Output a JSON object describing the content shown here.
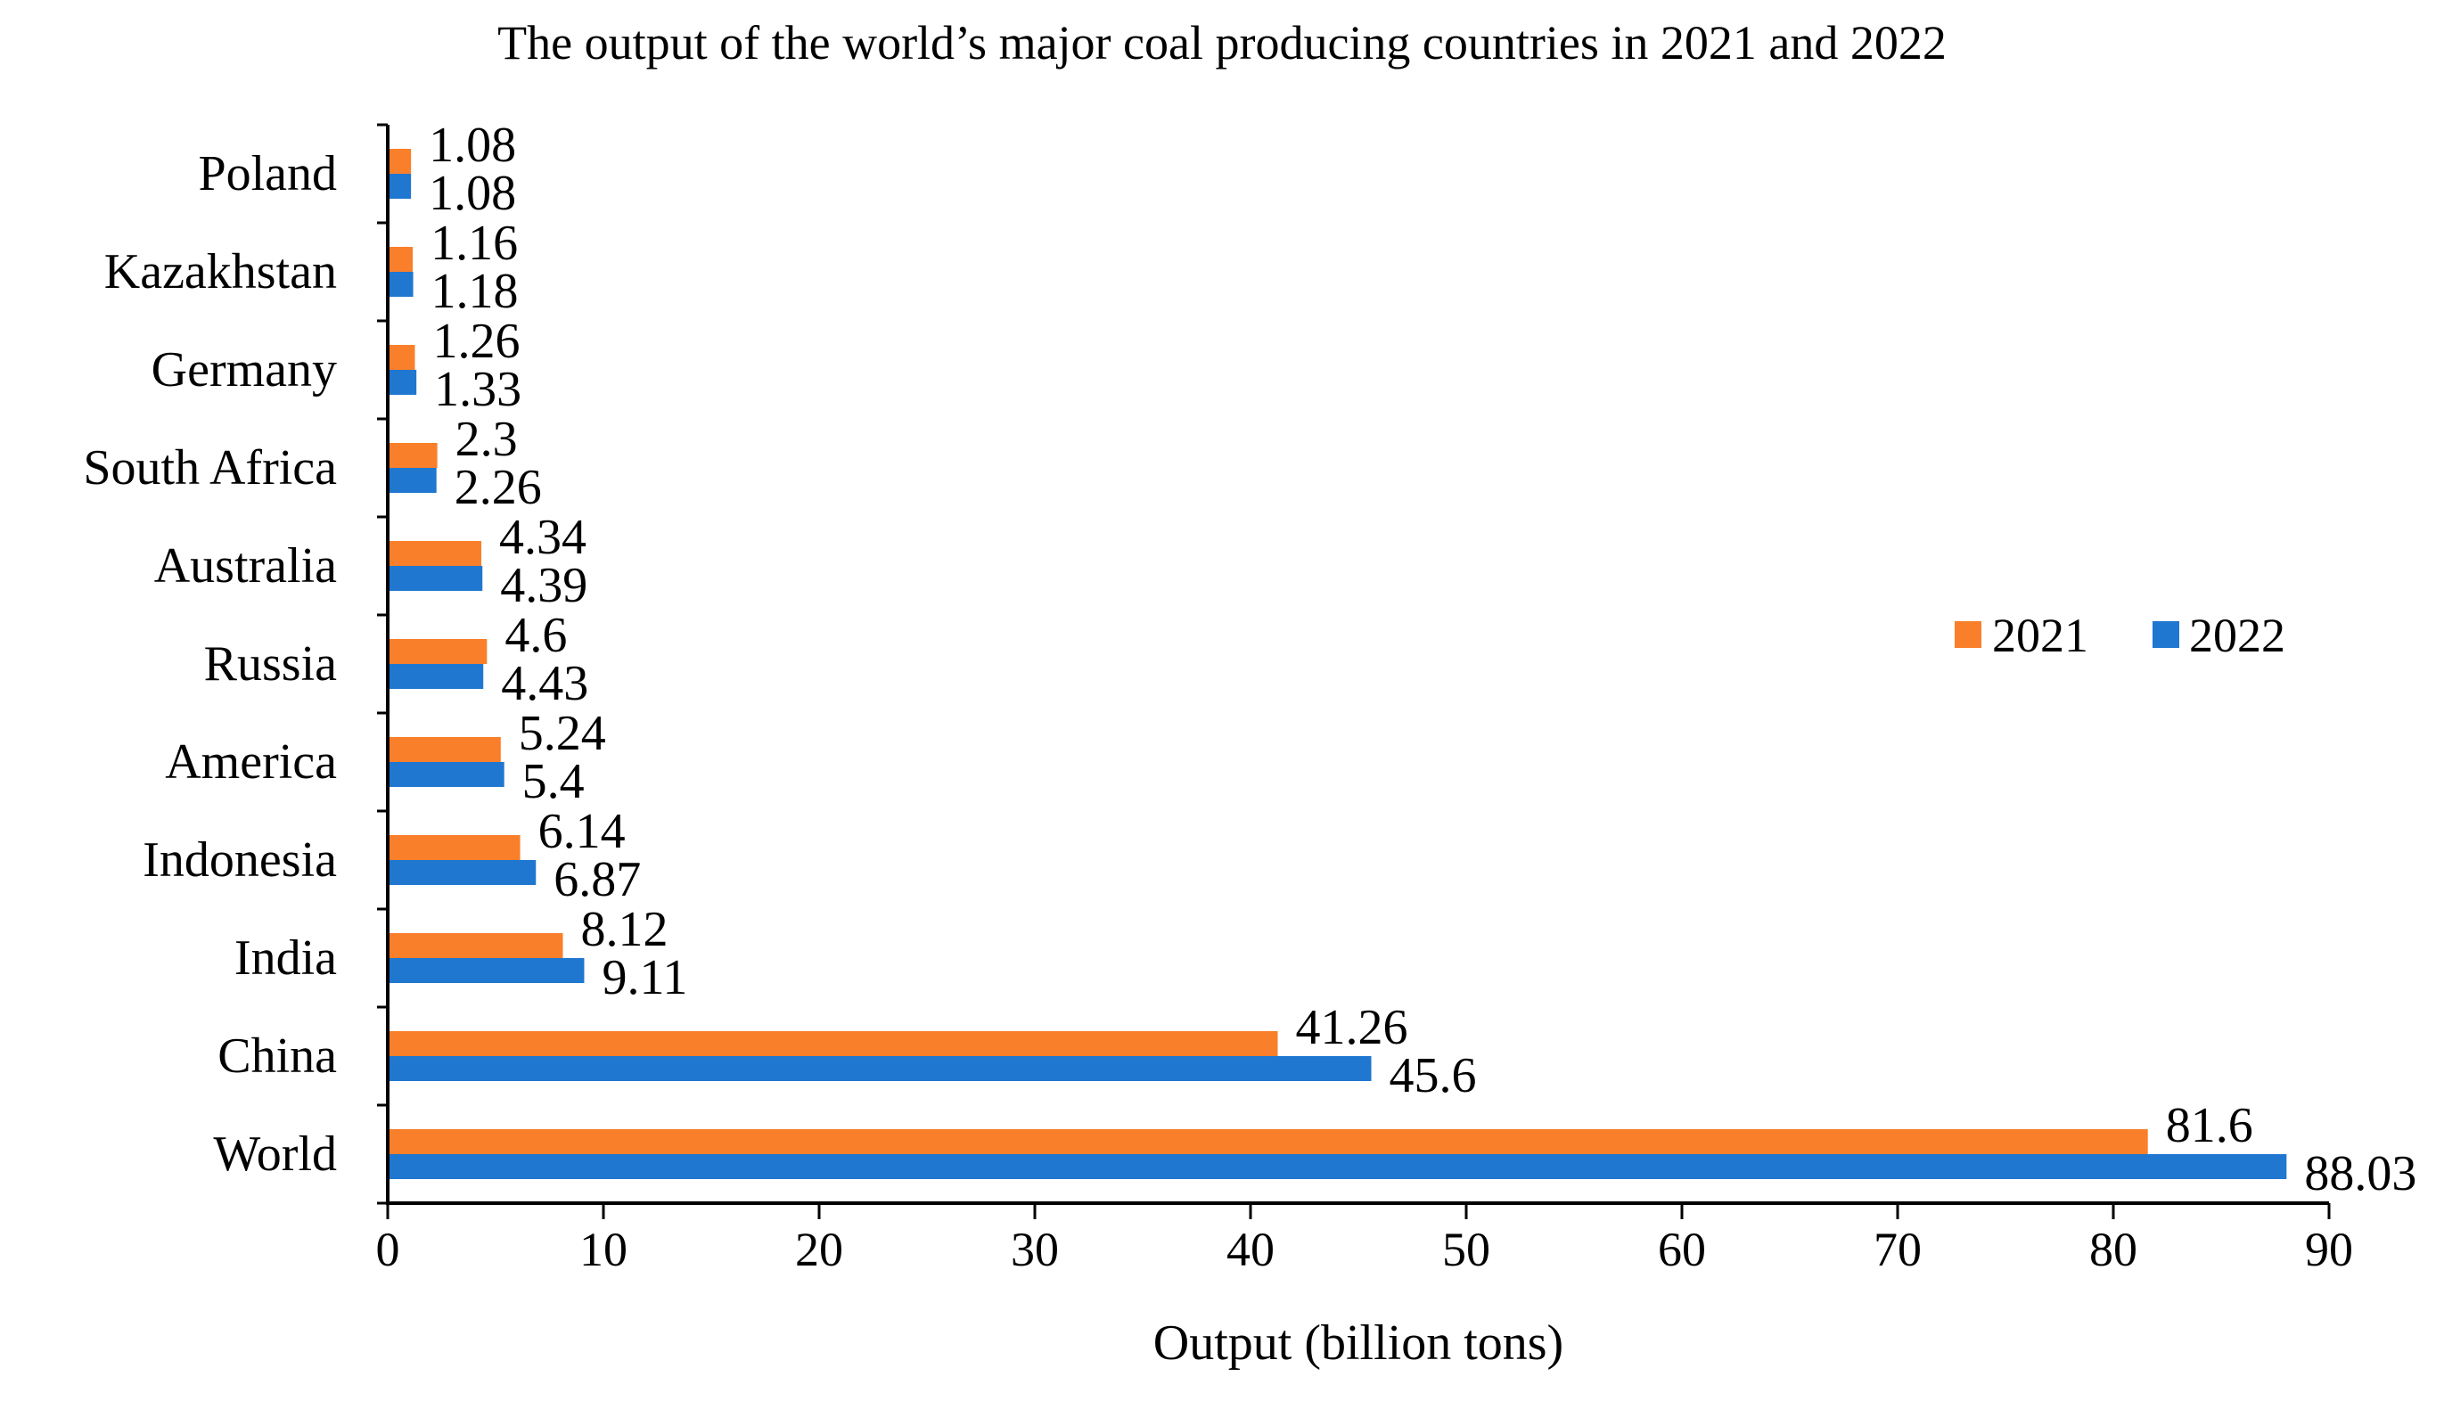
{
  "chart_data": {
    "type": "bar",
    "orientation": "horizontal",
    "title": "The output of the world’s major coal producing countries in 2021 and 2022",
    "xlabel": "Output (billion tons)",
    "ylabel": "",
    "xlim": [
      0,
      90
    ],
    "xticks": [
      0,
      10,
      20,
      30,
      40,
      50,
      60,
      70,
      80,
      90
    ],
    "grid": false,
    "legend_position": "right",
    "categories": [
      "Poland",
      "Kazakhstan",
      "Germany",
      "South Africa",
      "Australia",
      "Russia",
      "America",
      "Indonesia",
      "India",
      "China",
      "World"
    ],
    "series": [
      {
        "name": "2021",
        "color": "#fa7f2a",
        "values": [
          1.08,
          1.16,
          1.26,
          2.3,
          4.34,
          4.6,
          5.24,
          6.14,
          8.12,
          41.26,
          81.6
        ],
        "labels": [
          "1.08",
          "1.16",
          "1.26",
          "2.3",
          "4.34",
          "4.6",
          "5.24",
          "6.14",
          "8.12",
          "41.26",
          "81.6"
        ]
      },
      {
        "name": "2022",
        "color": "#1f77d0",
        "values": [
          1.08,
          1.18,
          1.33,
          2.26,
          4.39,
          4.43,
          5.4,
          6.87,
          9.11,
          45.6,
          88.03
        ],
        "labels": [
          "1.08",
          "1.18",
          "1.33",
          "2.26",
          "4.39",
          "4.43",
          "5.4",
          "6.87",
          "9.11",
          "45.6",
          "88.03"
        ]
      }
    ]
  }
}
